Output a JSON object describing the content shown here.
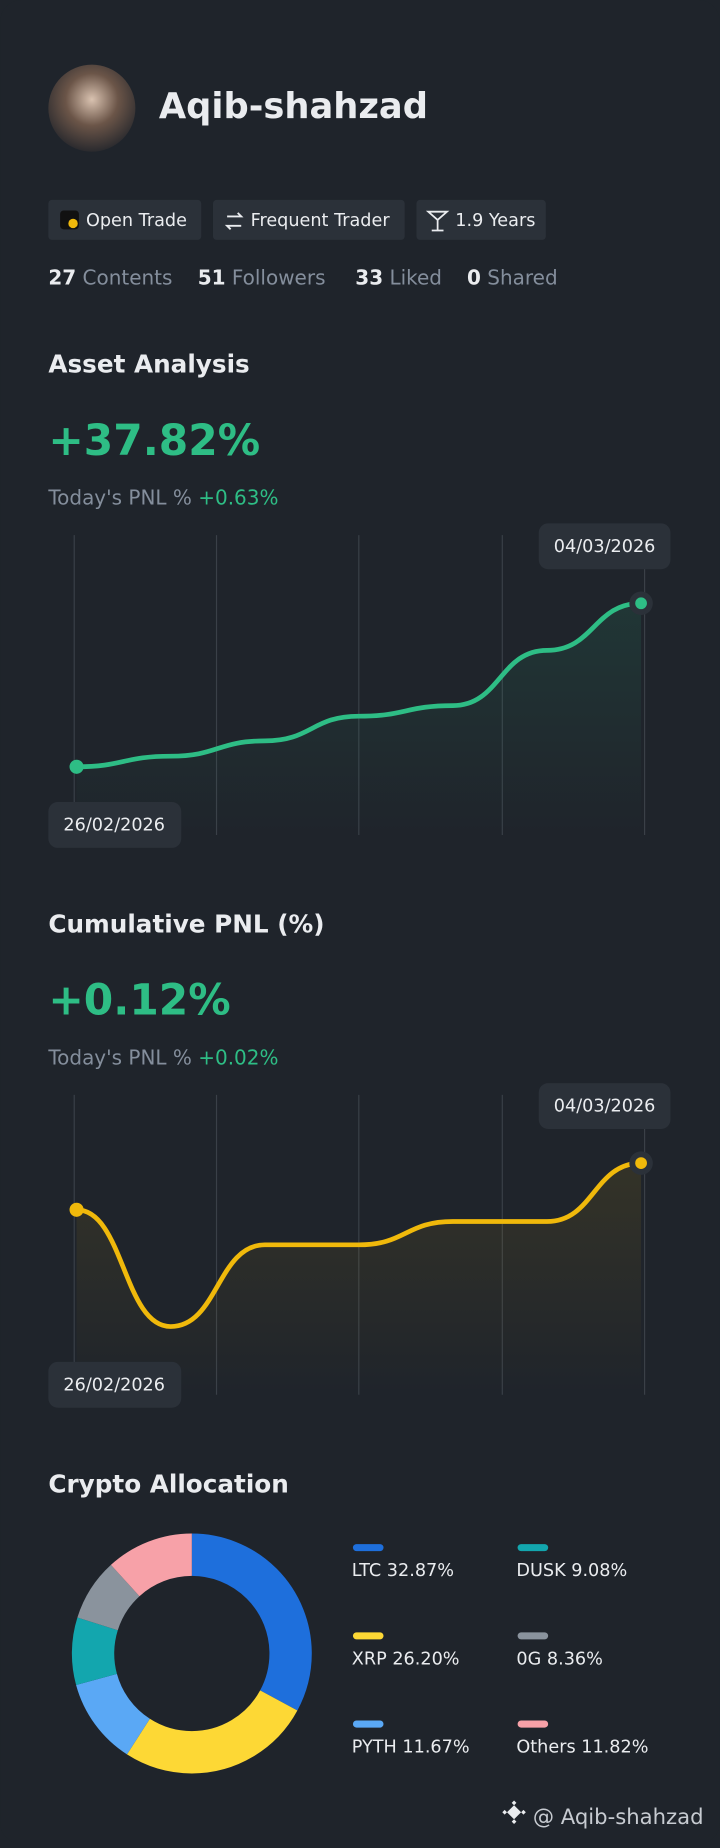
{
  "profile": {
    "name": "Aqib-shahzad",
    "badges": [
      "Open Trade",
      "Frequent Trader",
      "1.9 Years"
    ],
    "stats": [
      {
        "count": 27,
        "label": "Contents"
      },
      {
        "count": 51,
        "label": "Followers"
      },
      {
        "count": 33,
        "label": "Liked"
      },
      {
        "count": 0,
        "label": "Shared"
      }
    ]
  },
  "asset_analysis": {
    "title": "Asset Analysis",
    "value": "+37.82%",
    "pnl_label": "Today's PNL %",
    "pnl_value": "+0.63%",
    "chart": {
      "type": "line",
      "color": "#2ebd85",
      "values": [
        0,
        0.9,
        2.2,
        4.3,
        5.2,
        9.9,
        13.9
      ],
      "start_label": "26/02/2026",
      "end_label": "04/03/2026"
    }
  },
  "cumulative_pnl": {
    "title": "Cumulative PNL (%)",
    "value": "+0.12%",
    "pnl_label": "Today's PNL %",
    "pnl_value": "+0.02%",
    "chart": {
      "type": "line",
      "color": "#f0b90b",
      "values": [
        0.05,
        -0.05,
        0.02,
        0.02,
        0.04,
        0.04,
        0.09
      ],
      "start_label": "26/02/2026",
      "end_label": "04/03/2026"
    }
  },
  "allocation": {
    "title": "Crypto Allocation",
    "chart": {
      "type": "pie",
      "categories": [
        "LTC",
        "XRP",
        "PYTH",
        "DUSK",
        "0G",
        "Others"
      ],
      "values": [
        32.87,
        26.2,
        11.67,
        9.08,
        8.36,
        11.82
      ],
      "value_labels": [
        "32.87%",
        "26.20%",
        "11.67%",
        "9.08%",
        "8.36%",
        "11.82%"
      ],
      "colors": [
        "#1e6fdc",
        "#fdd835",
        "#5aa8f5",
        "#13a6ae",
        "#8a939d",
        "#f7a1a8"
      ]
    }
  },
  "footer": "@ Aqib-shahzad"
}
